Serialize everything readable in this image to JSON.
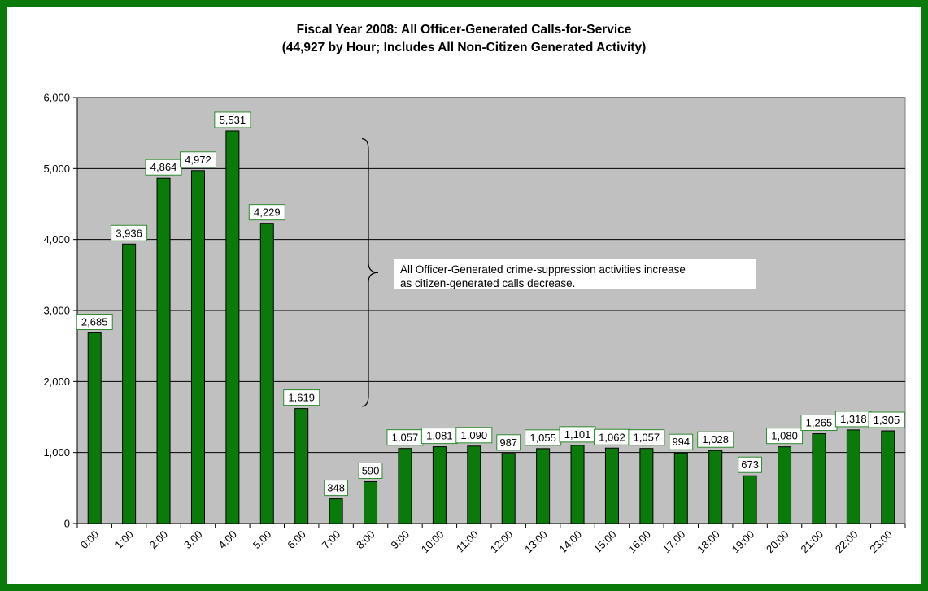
{
  "chart_data": {
    "type": "bar",
    "title": "Fiscal Year 2008: All Officer-Generated Calls-for-Service",
    "subtitle": "(44,927 by Hour; Includes All Non-Citizen Generated Activity)",
    "xlabel": "",
    "ylabel": "",
    "ylim": [
      0,
      6000
    ],
    "yticks": [
      "0",
      "1,000",
      "2,000",
      "3,000",
      "4,000",
      "5,000",
      "6,000"
    ],
    "grid": true,
    "legend": "none",
    "categories": [
      "0:00",
      "1:00",
      "2:00",
      "3:00",
      "4:00",
      "5:00",
      "6:00",
      "7:00",
      "8:00",
      "9:00",
      "10:00",
      "11:00",
      "12:00",
      "13:00",
      "14:00",
      "15:00",
      "16:00",
      "17:00",
      "18:00",
      "19:00",
      "20:00",
      "21:00",
      "22:00",
      "23:00"
    ],
    "values": [
      2685,
      3936,
      4864,
      4972,
      5531,
      4229,
      1619,
      348,
      590,
      1057,
      1081,
      1090,
      987,
      1055,
      1101,
      1062,
      1057,
      994,
      1028,
      673,
      1080,
      1265,
      1318,
      1305
    ],
    "data_labels": [
      "2,685",
      "3,936",
      "4,864",
      "4,972",
      "5,531",
      "4,229",
      "1,619",
      "348",
      "590",
      "1,057",
      "1,081",
      "1,090",
      "987",
      "1,055",
      "1,101",
      "1,062",
      "1,057",
      "994",
      "1,028",
      "673",
      "1,080",
      "1,265",
      "1,318",
      "1,305"
    ],
    "annotation": {
      "lines": [
        "All Officer-Generated crime-suppression activities increase",
        "as citizen-generated calls decrease."
      ],
      "brace_range": [
        1650,
        5420
      ]
    },
    "colors": {
      "frame": "#0a7a0a",
      "bar": "#0a7a0a",
      "plot_bg": "#c0c0c0",
      "label_border": "#2e8b2e"
    }
  }
}
